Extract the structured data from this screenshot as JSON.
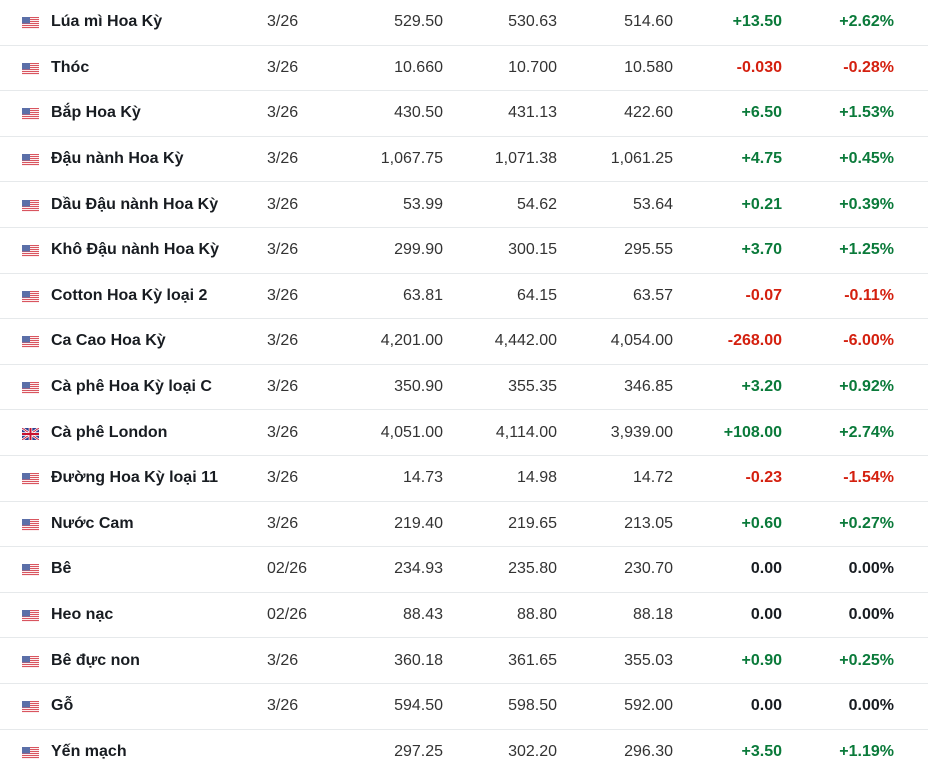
{
  "colors": {
    "up": "#0a7a3a",
    "down": "#d4200f"
  },
  "rows": [
    {
      "flag": "us-flag-icon",
      "name": "Lúa mì Hoa Kỳ",
      "date": "3/26",
      "last": "529.50",
      "high": "530.63",
      "low": "514.60",
      "change": "+13.50",
      "change_pct": "+2.62%",
      "dir": "up"
    },
    {
      "flag": "us-flag-icon",
      "name": "Thóc",
      "date": "3/26",
      "last": "10.660",
      "high": "10.700",
      "low": "10.580",
      "change": "-0.030",
      "change_pct": "-0.28%",
      "dir": "down"
    },
    {
      "flag": "us-flag-icon",
      "name": "Bắp Hoa Kỳ",
      "date": "3/26",
      "last": "430.50",
      "high": "431.13",
      "low": "422.60",
      "change": "+6.50",
      "change_pct": "+1.53%",
      "dir": "up"
    },
    {
      "flag": "us-flag-icon",
      "name": "Đậu nành Hoa Kỳ",
      "date": "3/26",
      "last": "1,067.75",
      "high": "1,071.38",
      "low": "1,061.25",
      "change": "+4.75",
      "change_pct": "+0.45%",
      "dir": "up"
    },
    {
      "flag": "us-flag-icon",
      "name": "Dầu Đậu nành Hoa Kỳ",
      "date": "3/26",
      "last": "53.99",
      "high": "54.62",
      "low": "53.64",
      "change": "+0.21",
      "change_pct": "+0.39%",
      "dir": "up"
    },
    {
      "flag": "us-flag-icon",
      "name": "Khô Đậu nành Hoa Kỳ",
      "date": "3/26",
      "last": "299.90",
      "high": "300.15",
      "low": "295.55",
      "change": "+3.70",
      "change_pct": "+1.25%",
      "dir": "up"
    },
    {
      "flag": "us-flag-icon",
      "name": "Cotton Hoa Kỳ loại 2",
      "date": "3/26",
      "last": "63.81",
      "high": "64.15",
      "low": "63.57",
      "change": "-0.07",
      "change_pct": "-0.11%",
      "dir": "down"
    },
    {
      "flag": "us-flag-icon",
      "name": "Ca Cao Hoa Kỳ",
      "date": "3/26",
      "last": "4,201.00",
      "high": "4,442.00",
      "low": "4,054.00",
      "change": "-268.00",
      "change_pct": "-6.00%",
      "dir": "down"
    },
    {
      "flag": "us-flag-icon",
      "name": "Cà phê Hoa Kỳ loại C",
      "date": "3/26",
      "last": "350.90",
      "high": "355.35",
      "low": "346.85",
      "change": "+3.20",
      "change_pct": "+0.92%",
      "dir": "up"
    },
    {
      "flag": "uk-flag-icon",
      "name": "Cà phê London",
      "date": "3/26",
      "last": "4,051.00",
      "high": "4,114.00",
      "low": "3,939.00",
      "change": "+108.00",
      "change_pct": "+2.74%",
      "dir": "up"
    },
    {
      "flag": "us-flag-icon",
      "name": "Đường Hoa Kỳ loại 11",
      "date": "3/26",
      "last": "14.73",
      "high": "14.98",
      "low": "14.72",
      "change": "-0.23",
      "change_pct": "-1.54%",
      "dir": "down"
    },
    {
      "flag": "us-flag-icon",
      "name": "Nước Cam",
      "date": "3/26",
      "last": "219.40",
      "high": "219.65",
      "low": "213.05",
      "change": "+0.60",
      "change_pct": "+0.27%",
      "dir": "up"
    },
    {
      "flag": "us-flag-icon",
      "name": "Bê",
      "date": "02/26",
      "last": "234.93",
      "high": "235.80",
      "low": "230.70",
      "change": "0.00",
      "change_pct": "0.00%",
      "dir": "flat"
    },
    {
      "flag": "us-flag-icon",
      "name": "Heo nạc",
      "date": "02/26",
      "last": "88.43",
      "high": "88.80",
      "low": "88.18",
      "change": "0.00",
      "change_pct": "0.00%",
      "dir": "flat"
    },
    {
      "flag": "us-flag-icon",
      "name": "Bê đực non",
      "date": "3/26",
      "last": "360.18",
      "high": "361.65",
      "low": "355.03",
      "change": "+0.90",
      "change_pct": "+0.25%",
      "dir": "up"
    },
    {
      "flag": "us-flag-icon",
      "name": "Gỗ",
      "date": "3/26",
      "last": "594.50",
      "high": "598.50",
      "low": "592.00",
      "change": "0.00",
      "change_pct": "0.00%",
      "dir": "flat"
    },
    {
      "flag": "us-flag-icon",
      "name": "Yến mạch",
      "date": "",
      "last": "297.25",
      "high": "302.20",
      "low": "296.30",
      "change": "+3.50",
      "change_pct": "+1.19%",
      "dir": "up"
    }
  ]
}
